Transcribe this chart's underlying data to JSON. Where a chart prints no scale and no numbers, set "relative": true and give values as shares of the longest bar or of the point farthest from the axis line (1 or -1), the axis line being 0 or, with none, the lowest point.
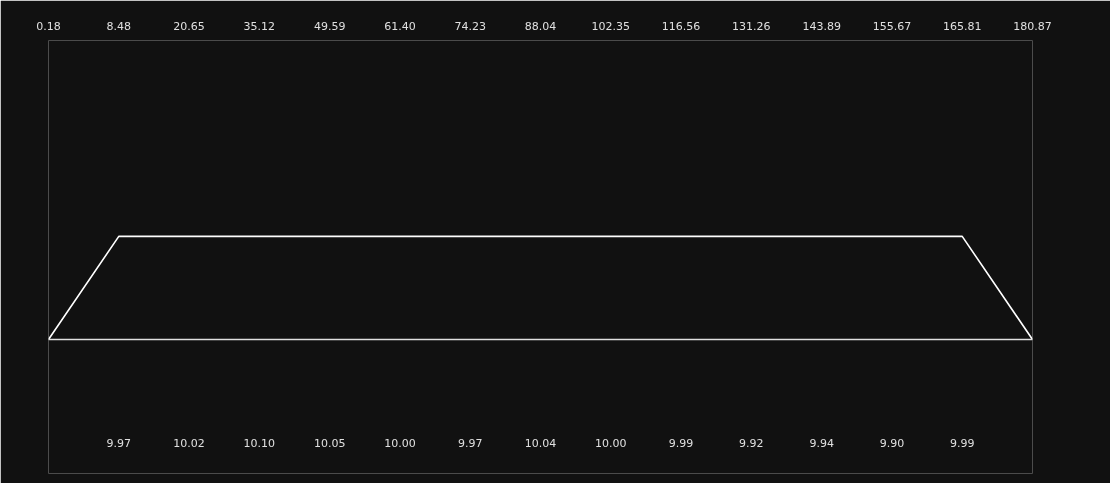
{
  "chart_data": {
    "type": "line",
    "relative": true,
    "categories": [
      "0.18",
      "8.48",
      "20.65",
      "35.12",
      "49.59",
      "61.40",
      "74.23",
      "88.04",
      "102.35",
      "116.56",
      "131.26",
      "143.89",
      "155.67",
      "165.81",
      "180.87"
    ],
    "series": [
      {
        "color": "#ffffff",
        "values": [
          0,
          1,
          1,
          1,
          1,
          1,
          1,
          1,
          1,
          1,
          1,
          1,
          1,
          1,
          0
        ]
      }
    ],
    "annotations": [
      "9.97",
      "10.02",
      "10.10",
      "10.05",
      "10.00",
      "9.97",
      "10.04",
      "10.00",
      "9.99",
      "9.92",
      "9.94",
      "9.90",
      "9.99"
    ],
    "line_style": "solid",
    "marker": "none"
  }
}
